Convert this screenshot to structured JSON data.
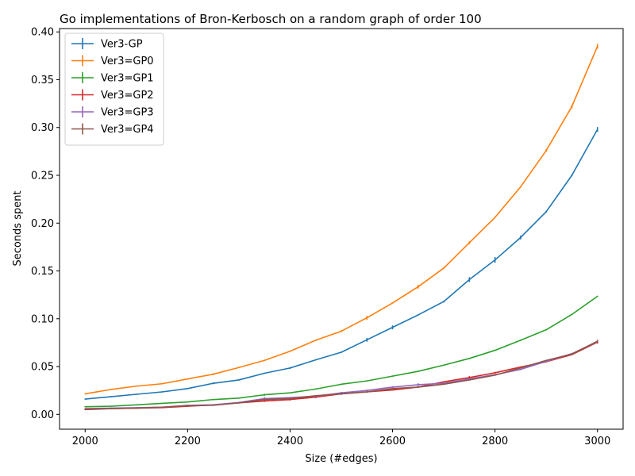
{
  "chart_data": {
    "type": "line",
    "title": "Go implementations of Bron-Kerbosch on a random graph of order 100",
    "xlabel": "Size (#edges)",
    "ylabel": "Seconds spent",
    "xlim": [
      1950,
      3050
    ],
    "ylim": [
      -0.0155,
      0.4035
    ],
    "xticks": [
      2000,
      2200,
      2400,
      2600,
      2800,
      3000
    ],
    "yticks": [
      0.0,
      0.05,
      0.1,
      0.15,
      0.2,
      0.25,
      0.3,
      0.35,
      0.4
    ],
    "ytick_labels": [
      "0.00",
      "0.05",
      "0.10",
      "0.15",
      "0.20",
      "0.25",
      "0.30",
      "0.35",
      "0.40"
    ],
    "legend_position": "top-left",
    "grid": false,
    "error_bars": true,
    "x": [
      2000,
      2050,
      2100,
      2150,
      2200,
      2250,
      2300,
      2350,
      2400,
      2450,
      2500,
      2550,
      2600,
      2650,
      2700,
      2750,
      2800,
      2850,
      2900,
      2950,
      3000
    ],
    "series": [
      {
        "name": "Ver3-GP",
        "color": "#1f77b4",
        "values": [
          0.016,
          0.0185,
          0.021,
          0.0235,
          0.027,
          0.0325,
          0.036,
          0.043,
          0.0485,
          0.057,
          0.065,
          0.078,
          0.091,
          0.104,
          0.118,
          0.141,
          0.1615,
          0.185,
          0.212,
          0.25,
          0.298
        ],
        "errors": [
          0.0005,
          0.0005,
          0.0005,
          0.0005,
          0.0005,
          0.001,
          0.0005,
          0.0005,
          0.001,
          0.0005,
          0.0005,
          0.002,
          0.002,
          0.0005,
          0.001,
          0.0025,
          0.003,
          0.002,
          0.001,
          0.001,
          0.0025
        ]
      },
      {
        "name": "Ver3=GP0",
        "color": "#ff7f0e",
        "values": [
          0.0215,
          0.026,
          0.0295,
          0.032,
          0.037,
          0.042,
          0.049,
          0.0565,
          0.066,
          0.0775,
          0.087,
          0.101,
          0.1165,
          0.1335,
          0.153,
          0.1795,
          0.206,
          0.238,
          0.276,
          0.322,
          0.385
        ],
        "errors": [
          0.0005,
          0.0005,
          0.0005,
          0.0005,
          0.0005,
          0.001,
          0.0005,
          0.0005,
          0.0005,
          0.0005,
          0.001,
          0.002,
          0.0005,
          0.002,
          0.0005,
          0.0015,
          0.0005,
          0.0005,
          0.0015,
          0.002,
          0.0025
        ]
      },
      {
        "name": "Ver3=GP1",
        "color": "#2ca02c",
        "values": [
          0.008,
          0.0085,
          0.01,
          0.0115,
          0.013,
          0.0155,
          0.017,
          0.0205,
          0.0225,
          0.0265,
          0.0315,
          0.035,
          0.04,
          0.045,
          0.0515,
          0.0585,
          0.067,
          0.0775,
          0.0885,
          0.1045,
          0.1235
        ],
        "errors": [
          0.0003,
          0.0003,
          0.0003,
          0.0003,
          0.0003,
          0.0003,
          0.0003,
          0.001,
          0.0003,
          0.0003,
          0.0003,
          0.0003,
          0.0003,
          0.0003,
          0.0003,
          0.0003,
          0.0005,
          0.0003,
          0.0003,
          0.0005,
          0.0005
        ]
      },
      {
        "name": "Ver3=GP2",
        "color": "#d62728",
        "values": [
          0.005,
          0.006,
          0.0065,
          0.007,
          0.0085,
          0.01,
          0.012,
          0.014,
          0.0155,
          0.018,
          0.0215,
          0.0235,
          0.0255,
          0.0285,
          0.034,
          0.0385,
          0.0435,
          0.0495,
          0.055,
          0.0625,
          0.0755
        ],
        "errors": [
          0.0003,
          0.0003,
          0.0003,
          0.0003,
          0.0003,
          0.0003,
          0.0005,
          0.001,
          0.001,
          0.001,
          0.001,
          0.0005,
          0.0005,
          0.0005,
          0.0005,
          0.0015,
          0.001,
          0.0005,
          0.0005,
          0.0005,
          0.0015
        ]
      },
      {
        "name": "Ver3=GP3",
        "color": "#9467bd",
        "values": [
          0.006,
          0.0065,
          0.007,
          0.0075,
          0.0095,
          0.01,
          0.0125,
          0.0165,
          0.0175,
          0.019,
          0.0225,
          0.025,
          0.0285,
          0.031,
          0.0325,
          0.037,
          0.0415,
          0.047,
          0.0555,
          0.0635,
          0.076
        ],
        "errors": [
          0.0003,
          0.0003,
          0.0003,
          0.0003,
          0.0003,
          0.0003,
          0.0005,
          0.0015,
          0.0005,
          0.0005,
          0.001,
          0.001,
          0.001,
          0.0015,
          0.0005,
          0.0005,
          0.0005,
          0.0005,
          0.0005,
          0.0005,
          0.0005
        ]
      },
      {
        "name": "Ver3=GP4",
        "color": "#8c564b",
        "values": [
          0.0055,
          0.006,
          0.0065,
          0.0075,
          0.009,
          0.0095,
          0.012,
          0.0155,
          0.0165,
          0.0195,
          0.0215,
          0.0235,
          0.027,
          0.0285,
          0.0315,
          0.036,
          0.041,
          0.0485,
          0.0565,
          0.063,
          0.0765
        ],
        "errors": [
          0.0003,
          0.0003,
          0.0003,
          0.0003,
          0.0003,
          0.0003,
          0.0005,
          0.001,
          0.0005,
          0.0005,
          0.001,
          0.0005,
          0.0005,
          0.0005,
          0.0005,
          0.0005,
          0.0005,
          0.0005,
          0.0005,
          0.0005,
          0.0015
        ]
      }
    ]
  }
}
